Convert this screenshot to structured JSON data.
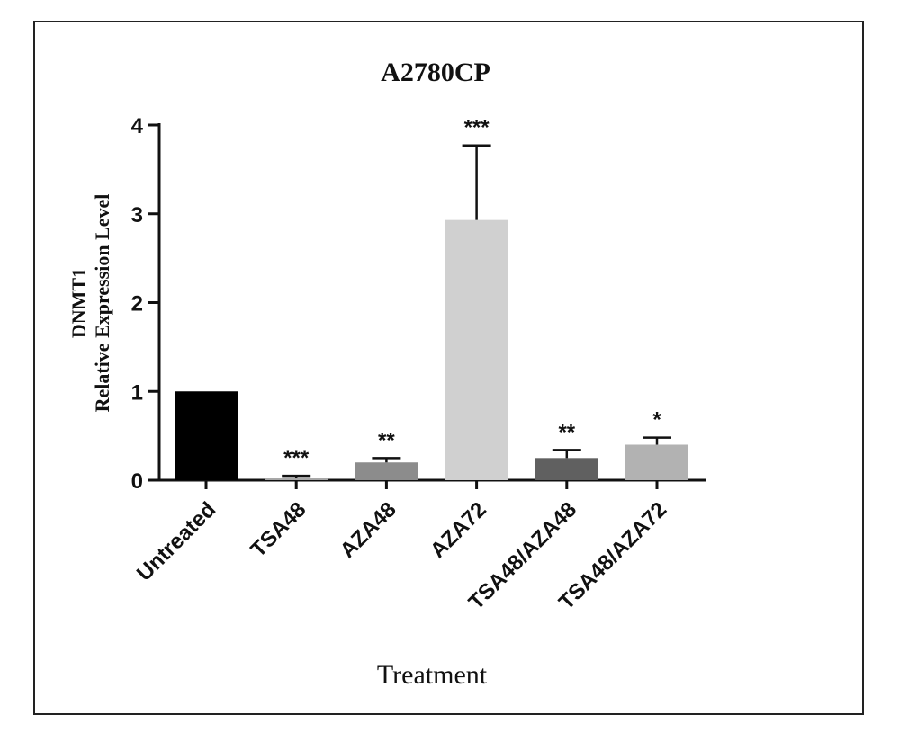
{
  "chart_data": {
    "type": "bar",
    "title": "A2780CP",
    "xlabel": "Treatment",
    "ylabel_lines": [
      "DNMT1",
      "Relative Expression Level"
    ],
    "ylim": [
      0,
      4
    ],
    "yticks": [
      0,
      1,
      2,
      3,
      4
    ],
    "categories": [
      "Untreated",
      "TSA48",
      "AZA48",
      "AZA72",
      "TSA48/AZA48",
      "TSA48/AZA72"
    ],
    "values": [
      1.0,
      0.02,
      0.2,
      2.93,
      0.25,
      0.4
    ],
    "error": [
      0,
      0.03,
      0.05,
      0.84,
      0.09,
      0.08
    ],
    "significance": [
      "",
      "***",
      "**",
      "***",
      "**",
      "*"
    ],
    "colors": [
      "#000000",
      "#a6a6a6",
      "#8c8c8c",
      "#d0d0d0",
      "#606060",
      "#b2b2b2"
    ],
    "grid": false,
    "legend": "none"
  }
}
